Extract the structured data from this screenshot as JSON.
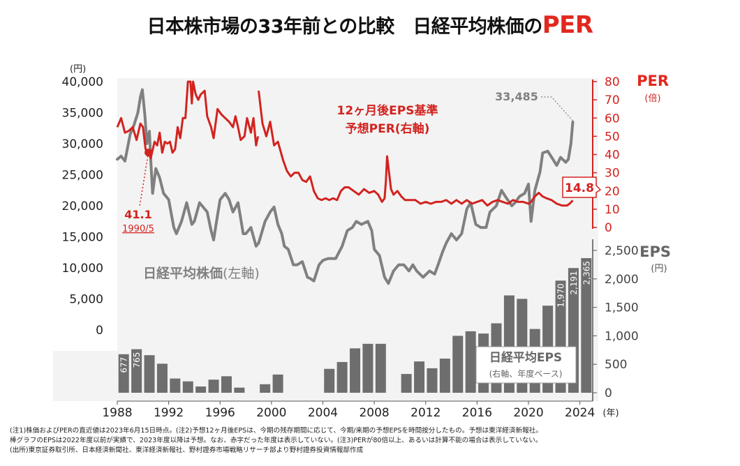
{
  "title": {
    "main": "日本株市場の33年前との比較　日経平均株価の",
    "accent": "PER"
  },
  "colors": {
    "price": "#808080",
    "per": "#d2231f",
    "eps_bar": "#6e6e6e",
    "accent": "#e1281e"
  },
  "chart_data": [
    {
      "type": "line",
      "name_label": "日経平均株価",
      "name_suffix": "(左軸)",
      "axis": "left",
      "ylabel": "(円)",
      "ylim": [
        0,
        40000
      ],
      "yticks": [
        "40,000",
        "35,000",
        "30,000",
        "25,000",
        "20,000",
        "15,000",
        "10,000",
        "5,000",
        "0"
      ],
      "x": [
        1988.0,
        1988.3,
        1988.6,
        1989.0,
        1989.3,
        1989.6,
        1989.8,
        1989.95,
        1990.15,
        1990.3,
        1990.5,
        1990.6,
        1990.75,
        1991.0,
        1991.3,
        1991.6,
        1992.0,
        1992.4,
        1992.6,
        1993.0,
        1993.4,
        1993.8,
        1994.0,
        1994.4,
        1994.8,
        1995.0,
        1995.3,
        1995.5,
        1995.8,
        1996.0,
        1996.4,
        1996.7,
        1997.0,
        1997.4,
        1997.8,
        1998.0,
        1998.4,
        1998.8,
        1999.0,
        1999.5,
        1999.9,
        2000.2,
        2000.5,
        2000.8,
        2001.0,
        2001.3,
        2001.7,
        2002.0,
        2002.4,
        2002.8,
        2003.0,
        2003.3,
        2003.7,
        2004.0,
        2004.4,
        2004.8,
        2005.0,
        2005.5,
        2005.9,
        2006.3,
        2006.6,
        2007.0,
        2007.5,
        2007.8,
        2008.0,
        2008.4,
        2008.8,
        2009.1,
        2009.5,
        2009.9,
        2010.3,
        2010.7,
        2011.0,
        2011.3,
        2011.8,
        2012.3,
        2012.7,
        2012.95,
        2013.3,
        2013.6,
        2014.0,
        2014.4,
        2014.8,
        2015.2,
        2015.5,
        2015.9,
        2016.3,
        2016.7,
        2017.0,
        2017.5,
        2017.9,
        2018.2,
        2018.7,
        2018.95,
        2019.3,
        2019.7,
        2020.0,
        2020.2,
        2020.5,
        2020.9,
        2021.1,
        2021.5,
        2021.9,
        2022.2,
        2022.5,
        2022.9,
        2023.1,
        2023.3,
        2023.45
      ],
      "values": [
        27500,
        28000,
        27200,
        31500,
        33000,
        35000,
        37500,
        38700,
        34500,
        30000,
        32000,
        27500,
        22000,
        26000,
        24500,
        22000,
        21000,
        16500,
        15500,
        17500,
        20500,
        17000,
        17500,
        20500,
        19500,
        19000,
        16000,
        14500,
        18500,
        21000,
        22000,
        21000,
        19000,
        20500,
        15500,
        15500,
        16500,
        13500,
        14000,
        17500,
        19000,
        19800,
        17000,
        15500,
        13500,
        13000,
        10500,
        10500,
        11000,
        8500,
        8300,
        7900,
        10500,
        11200,
        11500,
        11500,
        11500,
        13500,
        16000,
        16500,
        17500,
        17000,
        17500,
        16000,
        13000,
        12000,
        8500,
        7500,
        9500,
        10500,
        10500,
        9500,
        10500,
        9500,
        8500,
        9500,
        9000,
        10400,
        12500,
        14000,
        15500,
        14500,
        15500,
        19500,
        20500,
        17000,
        16500,
        16500,
        19000,
        20000,
        22500,
        21500,
        20000,
        20500,
        21500,
        22000,
        23500,
        17500,
        22500,
        25500,
        28500,
        28800,
        27500,
        26500,
        27800,
        27000,
        27500,
        30000,
        33485
      ]
    },
    {
      "type": "line",
      "name_label": "12ヶ月後EPS基準",
      "name_label2": "予想PER(右軸)",
      "axis": "right",
      "ylabel_title": "PER",
      "ylabel_unit": "(倍)",
      "ylim": [
        0,
        80
      ],
      "yticks": [
        "80",
        "70",
        "60",
        "50",
        "40",
        "30",
        "20",
        "10",
        "0"
      ],
      "segments": [
        {
          "x": [
            1988.0,
            1988.3,
            1988.6,
            1988.9,
            1989.2,
            1989.5,
            1989.8,
            1990.0,
            1990.2,
            1990.42,
            1990.6,
            1990.9,
            1991.1,
            1991.3,
            1991.5,
            1991.7,
            1991.9,
            1992.1,
            1992.3,
            1992.5,
            1992.7,
            1992.9,
            1993.1,
            1993.3,
            1993.5,
            1993.7,
            1993.8,
            1993.9,
            1994.1,
            1994.3,
            1994.5,
            1994.8,
            1995.0,
            1995.3,
            1995.5,
            1995.8,
            1996.1,
            1996.4,
            1996.7,
            1997.0,
            1997.2,
            1997.4,
            1997.6,
            1997.9,
            1998.1,
            1998.4,
            1998.6,
            1998.8,
            1998.95
          ],
          "values": [
            55,
            60,
            52,
            53,
            55,
            48,
            57,
            55,
            43,
            41.1,
            38,
            47,
            45,
            52,
            41,
            47,
            46,
            47,
            41,
            43,
            55,
            49,
            60,
            60,
            80,
            80,
            68,
            80,
            73,
            70,
            73,
            75,
            61,
            55,
            49,
            65,
            62,
            60,
            58,
            55,
            61,
            55,
            48,
            50,
            60,
            52,
            60,
            45,
            50
          ]
        },
        {
          "x": [
            1999.0,
            1999.3,
            1999.6,
            1999.9,
            2000.2,
            2000.5,
            2000.7,
            2000.9,
            2001.2,
            2001.5,
            2001.8,
            2002.1,
            2002.4,
            2002.7,
            2003.0,
            2003.3,
            2003.6,
            2003.9,
            2004.2,
            2004.5,
            2004.8,
            2005.1,
            2005.4,
            2005.7,
            2006.0,
            2006.4,
            2006.8,
            2007.2,
            2007.6,
            2008.0,
            2008.3,
            2008.6,
            2008.8,
            2008.9,
            2009.0,
            2009.1,
            2009.3,
            2009.5,
            2009.8,
            2010.1,
            2010.4,
            2010.8,
            2011.2,
            2011.6,
            2012.0,
            2012.4,
            2012.8,
            2013.2,
            2013.6,
            2014.0,
            2014.4,
            2014.8,
            2015.2,
            2015.6,
            2016.0,
            2016.4,
            2016.8,
            2017.2,
            2017.6,
            2018.0,
            2018.4,
            2018.8,
            2019.2,
            2019.6,
            2020.0,
            2020.2,
            2020.5,
            2020.8,
            2021.1,
            2021.4,
            2021.8,
            2022.2,
            2022.6,
            2023.0,
            2023.2,
            2023.45
          ],
          "values": [
            75,
            57,
            50,
            58,
            45,
            47,
            42,
            37,
            31,
            28,
            30,
            30,
            26,
            25,
            28,
            20,
            16,
            15,
            16,
            15,
            16,
            15,
            20,
            22,
            22,
            20,
            18,
            21,
            19,
            20,
            18,
            14,
            16,
            25,
            39,
            33,
            21,
            18,
            20,
            17,
            15,
            15,
            15,
            13,
            14,
            13,
            14,
            14,
            15,
            13,
            15,
            13,
            15,
            13,
            14,
            15,
            12,
            14,
            15,
            14,
            13,
            15,
            14,
            14,
            13,
            14,
            17,
            19,
            17,
            16,
            15,
            13,
            12,
            12,
            13,
            14.8
          ]
        }
      ]
    },
    {
      "type": "bar",
      "name_label": "日経平均EPS",
      "name_sub": "(右軸、年度ベース)",
      "axis": "right-lower",
      "ylabel_title": "EPS",
      "ylabel_unit": "(円)",
      "ylim": [
        0,
        2500
      ],
      "yticks": [
        "2,500",
        "2,000",
        "1,500",
        "1,000",
        "500",
        "0"
      ],
      "categories": [
        1988,
        1989,
        1990,
        1991,
        1992,
        1993,
        1994,
        1995,
        1996,
        1997,
        1998,
        1999,
        2000,
        2001,
        2002,
        2003,
        2004,
        2005,
        2006,
        2007,
        2008,
        2009,
        2010,
        2011,
        2012,
        2013,
        2014,
        2015,
        2016,
        2017,
        2018,
        2019,
        2020,
        2021,
        2022,
        2023,
        2024
      ],
      "values": [
        677,
        765,
        660,
        510,
        250,
        200,
        110,
        230,
        290,
        90,
        0,
        150,
        320,
        0,
        0,
        0,
        420,
        540,
        780,
        860,
        860,
        0,
        330,
        550,
        430,
        600,
        1000,
        1080,
        1040,
        1220,
        1710,
        1650,
        1120,
        1530,
        1970,
        2191,
        2365
      ],
      "labels": [
        "677",
        "765",
        "",
        "",
        "",
        "",
        "",
        "",
        "",
        "",
        "",
        "",
        "",
        "",
        "",
        "",
        "",
        "",
        "",
        "",
        "",
        "",
        "",
        "",
        "",
        "",
        "",
        "",
        "",
        "",
        "",
        "",
        "",
        "",
        "1,970",
        "2,191",
        "2,365"
      ]
    }
  ],
  "x_axis": {
    "ticks": [
      "1988",
      "1992",
      "1996",
      "2000",
      "2004",
      "2008",
      "2012",
      "2016",
      "2020",
      "2024"
    ],
    "unit": "(年)"
  },
  "annotations": {
    "per_1990_value": "41.1",
    "per_1990_date": "1990/5",
    "per_latest": "14.8",
    "price_latest": "33,485"
  },
  "notes": [
    "(注1)株価およびPERの直近値は2023年6月15日時点。(注2)予想12ヶ月後EPSは、今期の残存期間に応じて、今期/来期の予想EPSを時間按分したもの。予想は東洋経済新報社。",
    "棒グラフのEPSは2022年度以前が実績で、2023年度以降は予想。なお、赤字だった年度は表示していない。(注3)PERが80倍以上、あるいは計算不能の場合は表示していない。",
    "(出所)東京証券取引所、日本経済新聞社、東洋経済新報社、野村證券市場戦略リサーチ部より野村證券投資情報部作成"
  ]
}
